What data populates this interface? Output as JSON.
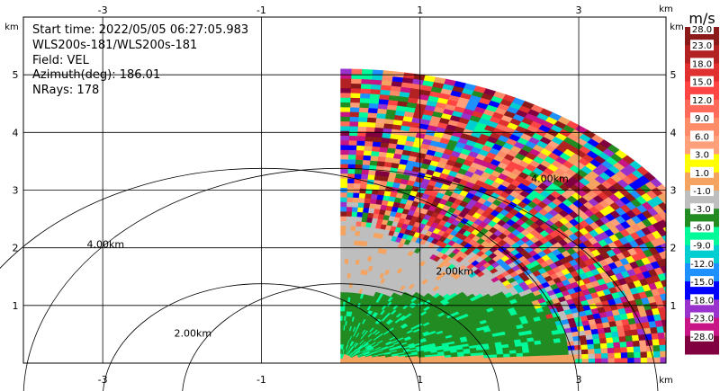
{
  "info": {
    "start_time": "Start time: 2022/05/05 06:27:05.983",
    "instrument": "WLS200s-181/WLS200s-181",
    "field": "Field: VEL",
    "azimuth": "Azimuth(deg): 186.01",
    "nrays": "NRays: 178"
  },
  "axes": {
    "unit": "km",
    "x_ticks": [
      "-3",
      "-1",
      "1",
      "3"
    ],
    "x_tick_values": [
      -3,
      -1,
      1,
      3
    ],
    "y_ticks": [
      "1",
      "2",
      "3",
      "4",
      "5"
    ],
    "y_tick_values": [
      1,
      2,
      3,
      4,
      5
    ],
    "x_range": [
      -4.0,
      4.1
    ],
    "y_range": [
      0,
      6.0
    ]
  },
  "range_rings": [
    {
      "label": "2.00km",
      "radius_km": 2.0
    },
    {
      "label": "4.00km",
      "radius_km": 4.0
    }
  ],
  "rings_right": [
    {
      "label": "2.00km",
      "radius_km": 2.0
    },
    {
      "label": "4.00km",
      "radius_km": 4.0
    }
  ],
  "colorbar": {
    "title": "m/s",
    "labels": [
      "28.0",
      "23.0",
      "18.0",
      "15.0",
      "12.0",
      "9.0",
      "6.0",
      "3.0",
      "1.0",
      "-1.0",
      "-3.0",
      "-6.0",
      "-9.0",
      "-12.0",
      "-15.0",
      "-18.0",
      "-23.0",
      "-28.0"
    ],
    "colors": [
      "#8b1a1a",
      "#b22222",
      "#e03030",
      "#ff4444",
      "#ff6a5a",
      "#ff8c69",
      "#ffa07a",
      "#ffff00",
      "#f4a460",
      "#bebebe",
      "#228b22",
      "#00fa9a",
      "#00ced1",
      "#1e90ff",
      "#0000ff",
      "#9932cc",
      "#c71585",
      "#800040"
    ]
  }
}
